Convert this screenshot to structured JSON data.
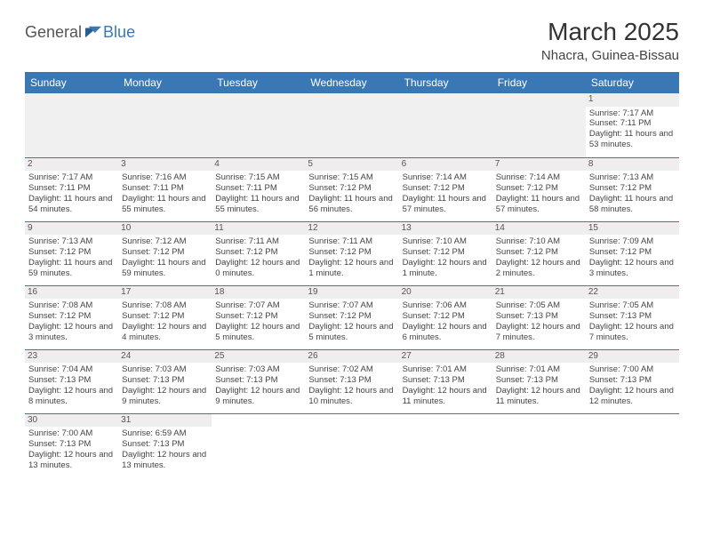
{
  "logo": {
    "part1": "General",
    "part2": "Blue"
  },
  "title": "March 2025",
  "location": "Nhacra, Guinea-Bissau",
  "weekdays": [
    "Sunday",
    "Monday",
    "Tuesday",
    "Wednesday",
    "Thursday",
    "Friday",
    "Saturday"
  ],
  "colors": {
    "header_bg": "#3a78b5",
    "accent": "#3a78b5"
  },
  "weeks": [
    [
      null,
      null,
      null,
      null,
      null,
      null,
      {
        "d": "1",
        "sr": "7:17 AM",
        "ss": "7:11 PM",
        "dl": "11 hours and 53 minutes."
      }
    ],
    [
      {
        "d": "2",
        "sr": "7:17 AM",
        "ss": "7:11 PM",
        "dl": "11 hours and 54 minutes."
      },
      {
        "d": "3",
        "sr": "7:16 AM",
        "ss": "7:11 PM",
        "dl": "11 hours and 55 minutes."
      },
      {
        "d": "4",
        "sr": "7:15 AM",
        "ss": "7:11 PM",
        "dl": "11 hours and 55 minutes."
      },
      {
        "d": "5",
        "sr": "7:15 AM",
        "ss": "7:12 PM",
        "dl": "11 hours and 56 minutes."
      },
      {
        "d": "6",
        "sr": "7:14 AM",
        "ss": "7:12 PM",
        "dl": "11 hours and 57 minutes."
      },
      {
        "d": "7",
        "sr": "7:14 AM",
        "ss": "7:12 PM",
        "dl": "11 hours and 57 minutes."
      },
      {
        "d": "8",
        "sr": "7:13 AM",
        "ss": "7:12 PM",
        "dl": "11 hours and 58 minutes."
      }
    ],
    [
      {
        "d": "9",
        "sr": "7:13 AM",
        "ss": "7:12 PM",
        "dl": "11 hours and 59 minutes."
      },
      {
        "d": "10",
        "sr": "7:12 AM",
        "ss": "7:12 PM",
        "dl": "11 hours and 59 minutes."
      },
      {
        "d": "11",
        "sr": "7:11 AM",
        "ss": "7:12 PM",
        "dl": "12 hours and 0 minutes."
      },
      {
        "d": "12",
        "sr": "7:11 AM",
        "ss": "7:12 PM",
        "dl": "12 hours and 1 minute."
      },
      {
        "d": "13",
        "sr": "7:10 AM",
        "ss": "7:12 PM",
        "dl": "12 hours and 1 minute."
      },
      {
        "d": "14",
        "sr": "7:10 AM",
        "ss": "7:12 PM",
        "dl": "12 hours and 2 minutes."
      },
      {
        "d": "15",
        "sr": "7:09 AM",
        "ss": "7:12 PM",
        "dl": "12 hours and 3 minutes."
      }
    ],
    [
      {
        "d": "16",
        "sr": "7:08 AM",
        "ss": "7:12 PM",
        "dl": "12 hours and 3 minutes."
      },
      {
        "d": "17",
        "sr": "7:08 AM",
        "ss": "7:12 PM",
        "dl": "12 hours and 4 minutes."
      },
      {
        "d": "18",
        "sr": "7:07 AM",
        "ss": "7:12 PM",
        "dl": "12 hours and 5 minutes."
      },
      {
        "d": "19",
        "sr": "7:07 AM",
        "ss": "7:12 PM",
        "dl": "12 hours and 5 minutes."
      },
      {
        "d": "20",
        "sr": "7:06 AM",
        "ss": "7:12 PM",
        "dl": "12 hours and 6 minutes."
      },
      {
        "d": "21",
        "sr": "7:05 AM",
        "ss": "7:13 PM",
        "dl": "12 hours and 7 minutes."
      },
      {
        "d": "22",
        "sr": "7:05 AM",
        "ss": "7:13 PM",
        "dl": "12 hours and 7 minutes."
      }
    ],
    [
      {
        "d": "23",
        "sr": "7:04 AM",
        "ss": "7:13 PM",
        "dl": "12 hours and 8 minutes."
      },
      {
        "d": "24",
        "sr": "7:03 AM",
        "ss": "7:13 PM",
        "dl": "12 hours and 9 minutes."
      },
      {
        "d": "25",
        "sr": "7:03 AM",
        "ss": "7:13 PM",
        "dl": "12 hours and 9 minutes."
      },
      {
        "d": "26",
        "sr": "7:02 AM",
        "ss": "7:13 PM",
        "dl": "12 hours and 10 minutes."
      },
      {
        "d": "27",
        "sr": "7:01 AM",
        "ss": "7:13 PM",
        "dl": "12 hours and 11 minutes."
      },
      {
        "d": "28",
        "sr": "7:01 AM",
        "ss": "7:13 PM",
        "dl": "12 hours and 11 minutes."
      },
      {
        "d": "29",
        "sr": "7:00 AM",
        "ss": "7:13 PM",
        "dl": "12 hours and 12 minutes."
      }
    ],
    [
      {
        "d": "30",
        "sr": "7:00 AM",
        "ss": "7:13 PM",
        "dl": "12 hours and 13 minutes."
      },
      {
        "d": "31",
        "sr": "6:59 AM",
        "ss": "7:13 PM",
        "dl": "12 hours and 13 minutes."
      },
      null,
      null,
      null,
      null,
      null
    ]
  ],
  "labels": {
    "sunrise": "Sunrise:",
    "sunset": "Sunset:",
    "daylight": "Daylight:"
  }
}
